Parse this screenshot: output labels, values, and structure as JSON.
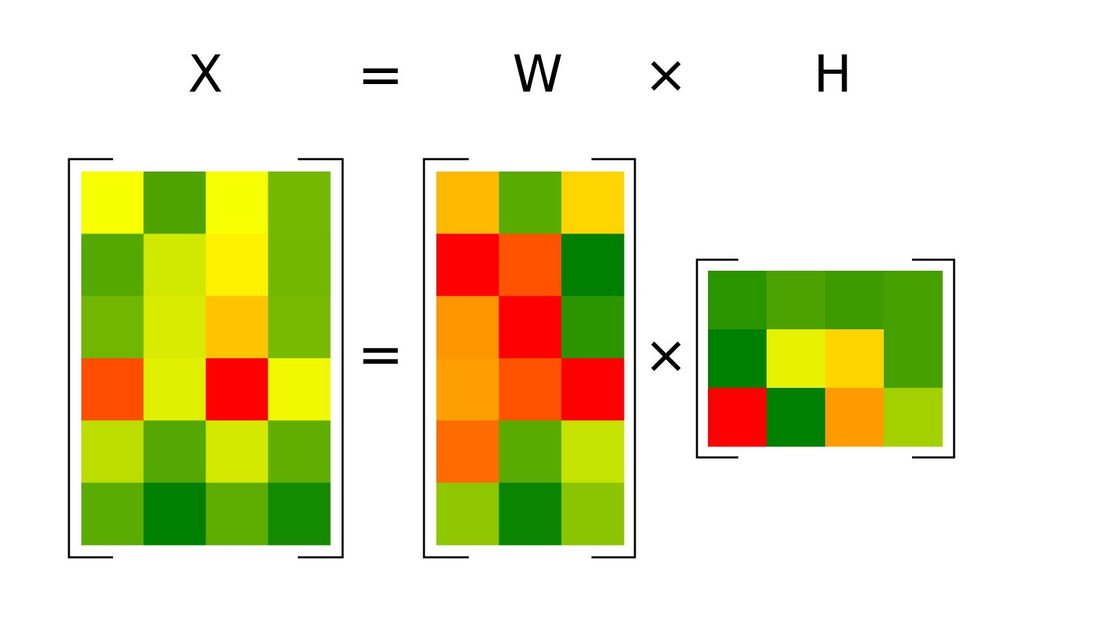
{
  "labels": {
    "x": "X",
    "equals_top": "=",
    "w": "W",
    "times_top": "×",
    "h": "H",
    "equals_mid": "=",
    "times_mid": "×"
  },
  "matrices": {
    "X": {
      "rows": 6,
      "cols": 4,
      "colors": [
        [
          "#f7ff00",
          "#4ea300",
          "#f8ff00",
          "#74b800"
        ],
        [
          "#55a800",
          "#d1e800",
          "#fff200",
          "#72b700"
        ],
        [
          "#71b600",
          "#d8eb00",
          "#ffc400",
          "#78ba00"
        ],
        [
          "#ff4e00",
          "#e0f000",
          "#ff0000",
          "#f2f800"
        ],
        [
          "#bbdd00",
          "#53a700",
          "#d3e900",
          "#5fae00"
        ],
        [
          "#5bac00",
          "#008000",
          "#5dad00",
          "#138a00"
        ]
      ]
    },
    "W": {
      "rows": 6,
      "cols": 3,
      "colors": [
        [
          "#ffb900",
          "#5aab00",
          "#ffd500"
        ],
        [
          "#ff0000",
          "#ff5300",
          "#008000"
        ],
        [
          "#ff9500",
          "#ff0000",
          "#2b9500"
        ],
        [
          "#ff9e00",
          "#ff5300",
          "#ff0000"
        ],
        [
          "#ff6b00",
          "#5aab00",
          "#c4e400"
        ],
        [
          "#8ec700",
          "#0a8500",
          "#8bc400"
        ]
      ]
    },
    "H": {
      "rows": 3,
      "cols": 4,
      "colors": [
        [
          "#2b9500",
          "#4ba200",
          "#3d9b00",
          "#46a100"
        ],
        [
          "#008000",
          "#e5f100",
          "#ffd400",
          "#46a100"
        ],
        [
          "#ff0000",
          "#008000",
          "#ff9b00",
          "#a3d100"
        ]
      ]
    }
  }
}
